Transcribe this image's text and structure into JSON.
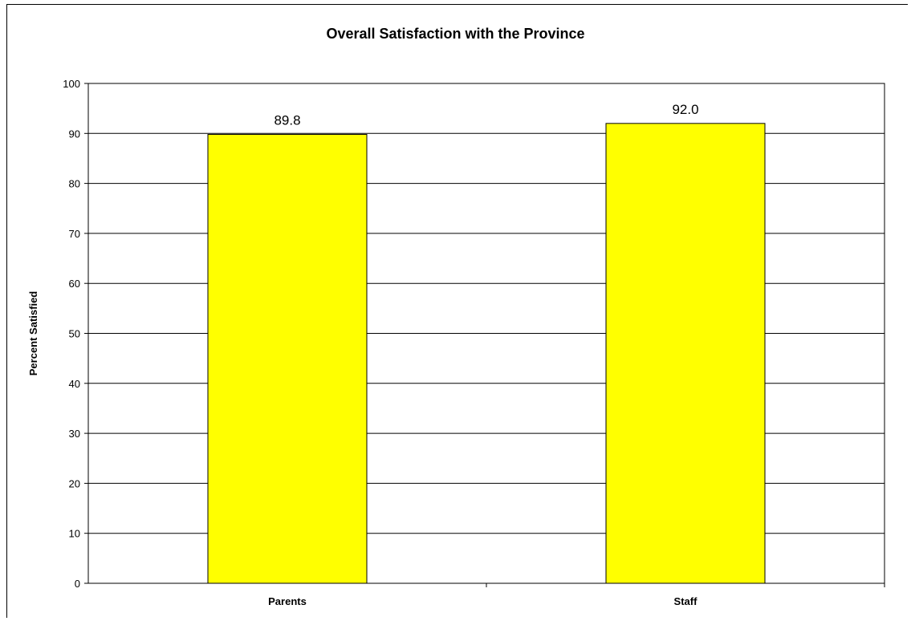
{
  "chart_data": {
    "type": "bar",
    "title": "Overall Satisfaction with the Province",
    "ylabel": "Percent Satisfied",
    "xlabel": "",
    "categories": [
      "Parents",
      "Staff"
    ],
    "values": [
      89.8,
      92.0
    ],
    "data_labels": [
      "89.8",
      "92.0"
    ],
    "ylim": [
      0,
      100
    ],
    "yticks": [
      0,
      10,
      20,
      30,
      40,
      50,
      60,
      70,
      80,
      90,
      100
    ],
    "grid": true,
    "bar_color": "#ffff00",
    "legend": "none"
  }
}
